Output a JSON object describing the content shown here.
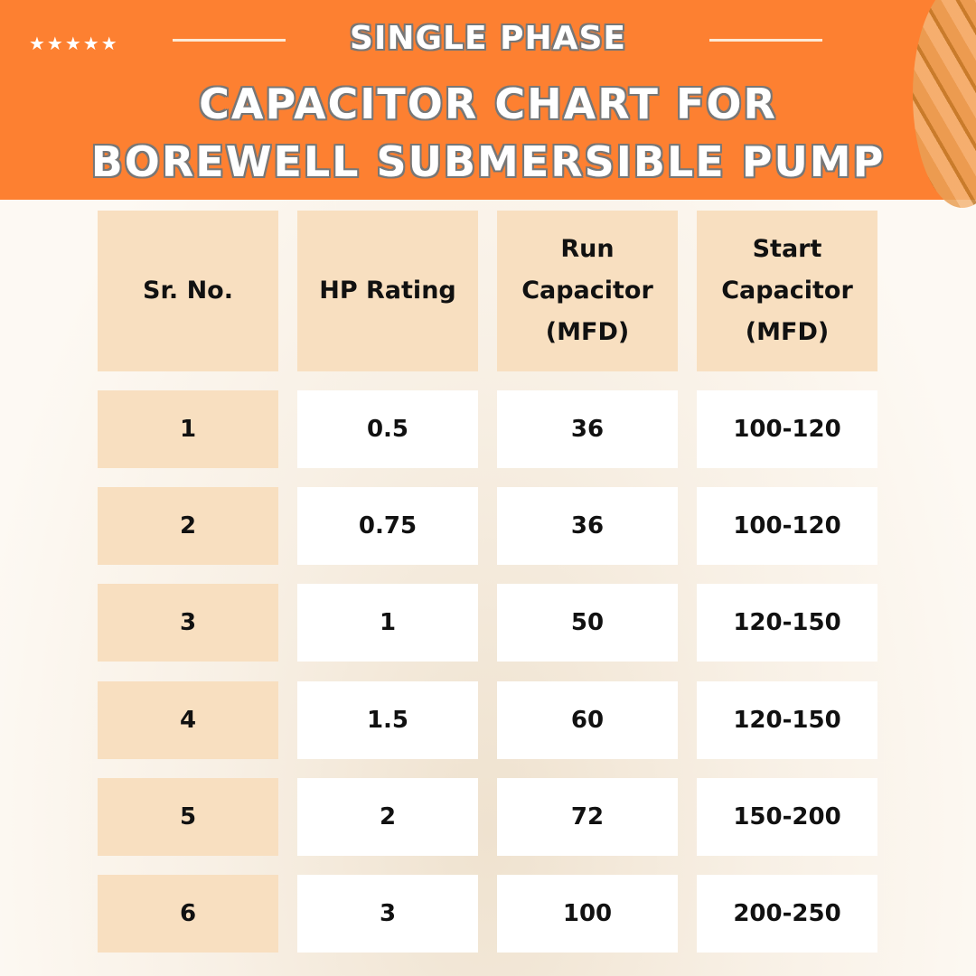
{
  "header": {
    "rating_stars": 5,
    "subtitle": "SINGLE PHASE",
    "title_line1": "CAPACITOR CHART FOR",
    "title_line2": "BOREWELL SUBMERSIBLE PUMP"
  },
  "colors": {
    "banner": "#fd8031",
    "peach": "#f8dfc0",
    "white": "#ffffff"
  },
  "chart_data": {
    "type": "table",
    "title": "CAPACITOR CHART FOR BOREWELL SUBMERSIBLE PUMP",
    "columns": [
      "Sr. No.",
      "HP Rating",
      "Run Capacitor (MFD)",
      "Start Capacitor (MFD)"
    ],
    "rows": [
      [
        "1",
        "0.5",
        "36",
        "100-120"
      ],
      [
        "2",
        "0.75",
        "36",
        "100-120"
      ],
      [
        "3",
        "1",
        "50",
        "120-150"
      ],
      [
        "4",
        "1.5",
        "60",
        "120-150"
      ],
      [
        "5",
        "2",
        "72",
        "150-200"
      ],
      [
        "6",
        "3",
        "100",
        "200-250"
      ]
    ]
  }
}
